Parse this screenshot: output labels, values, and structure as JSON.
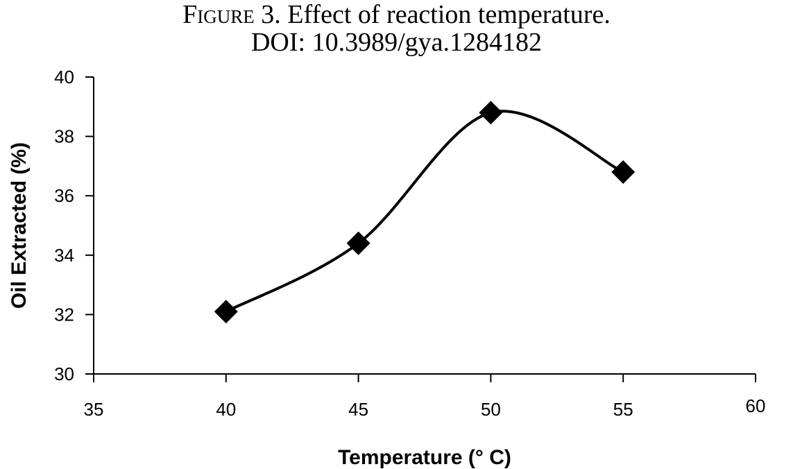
{
  "figure": {
    "caption_label": "Figure 3.",
    "caption_text": " Effect of reaction temperature.",
    "doi": "DOI: 10.3989/gya.1284182"
  },
  "chart_data": {
    "type": "scatter",
    "title": "",
    "xlabel": "Temperature (° C)",
    "ylabel": "Oil Extracted (%)",
    "xlim": [
      35,
      60
    ],
    "ylim": [
      30,
      40
    ],
    "xticks": [
      35,
      40,
      45,
      50,
      55,
      60
    ],
    "yticks": [
      30,
      32,
      34,
      36,
      38,
      40
    ],
    "grid": false,
    "legend": "none",
    "marker": "diamond",
    "smooth_line": true,
    "series": [
      {
        "x": [
          40,
          45,
          50,
          55
        ],
        "y": [
          32.1,
          34.4,
          38.8,
          36.8
        ],
        "color": "#000000"
      }
    ]
  }
}
